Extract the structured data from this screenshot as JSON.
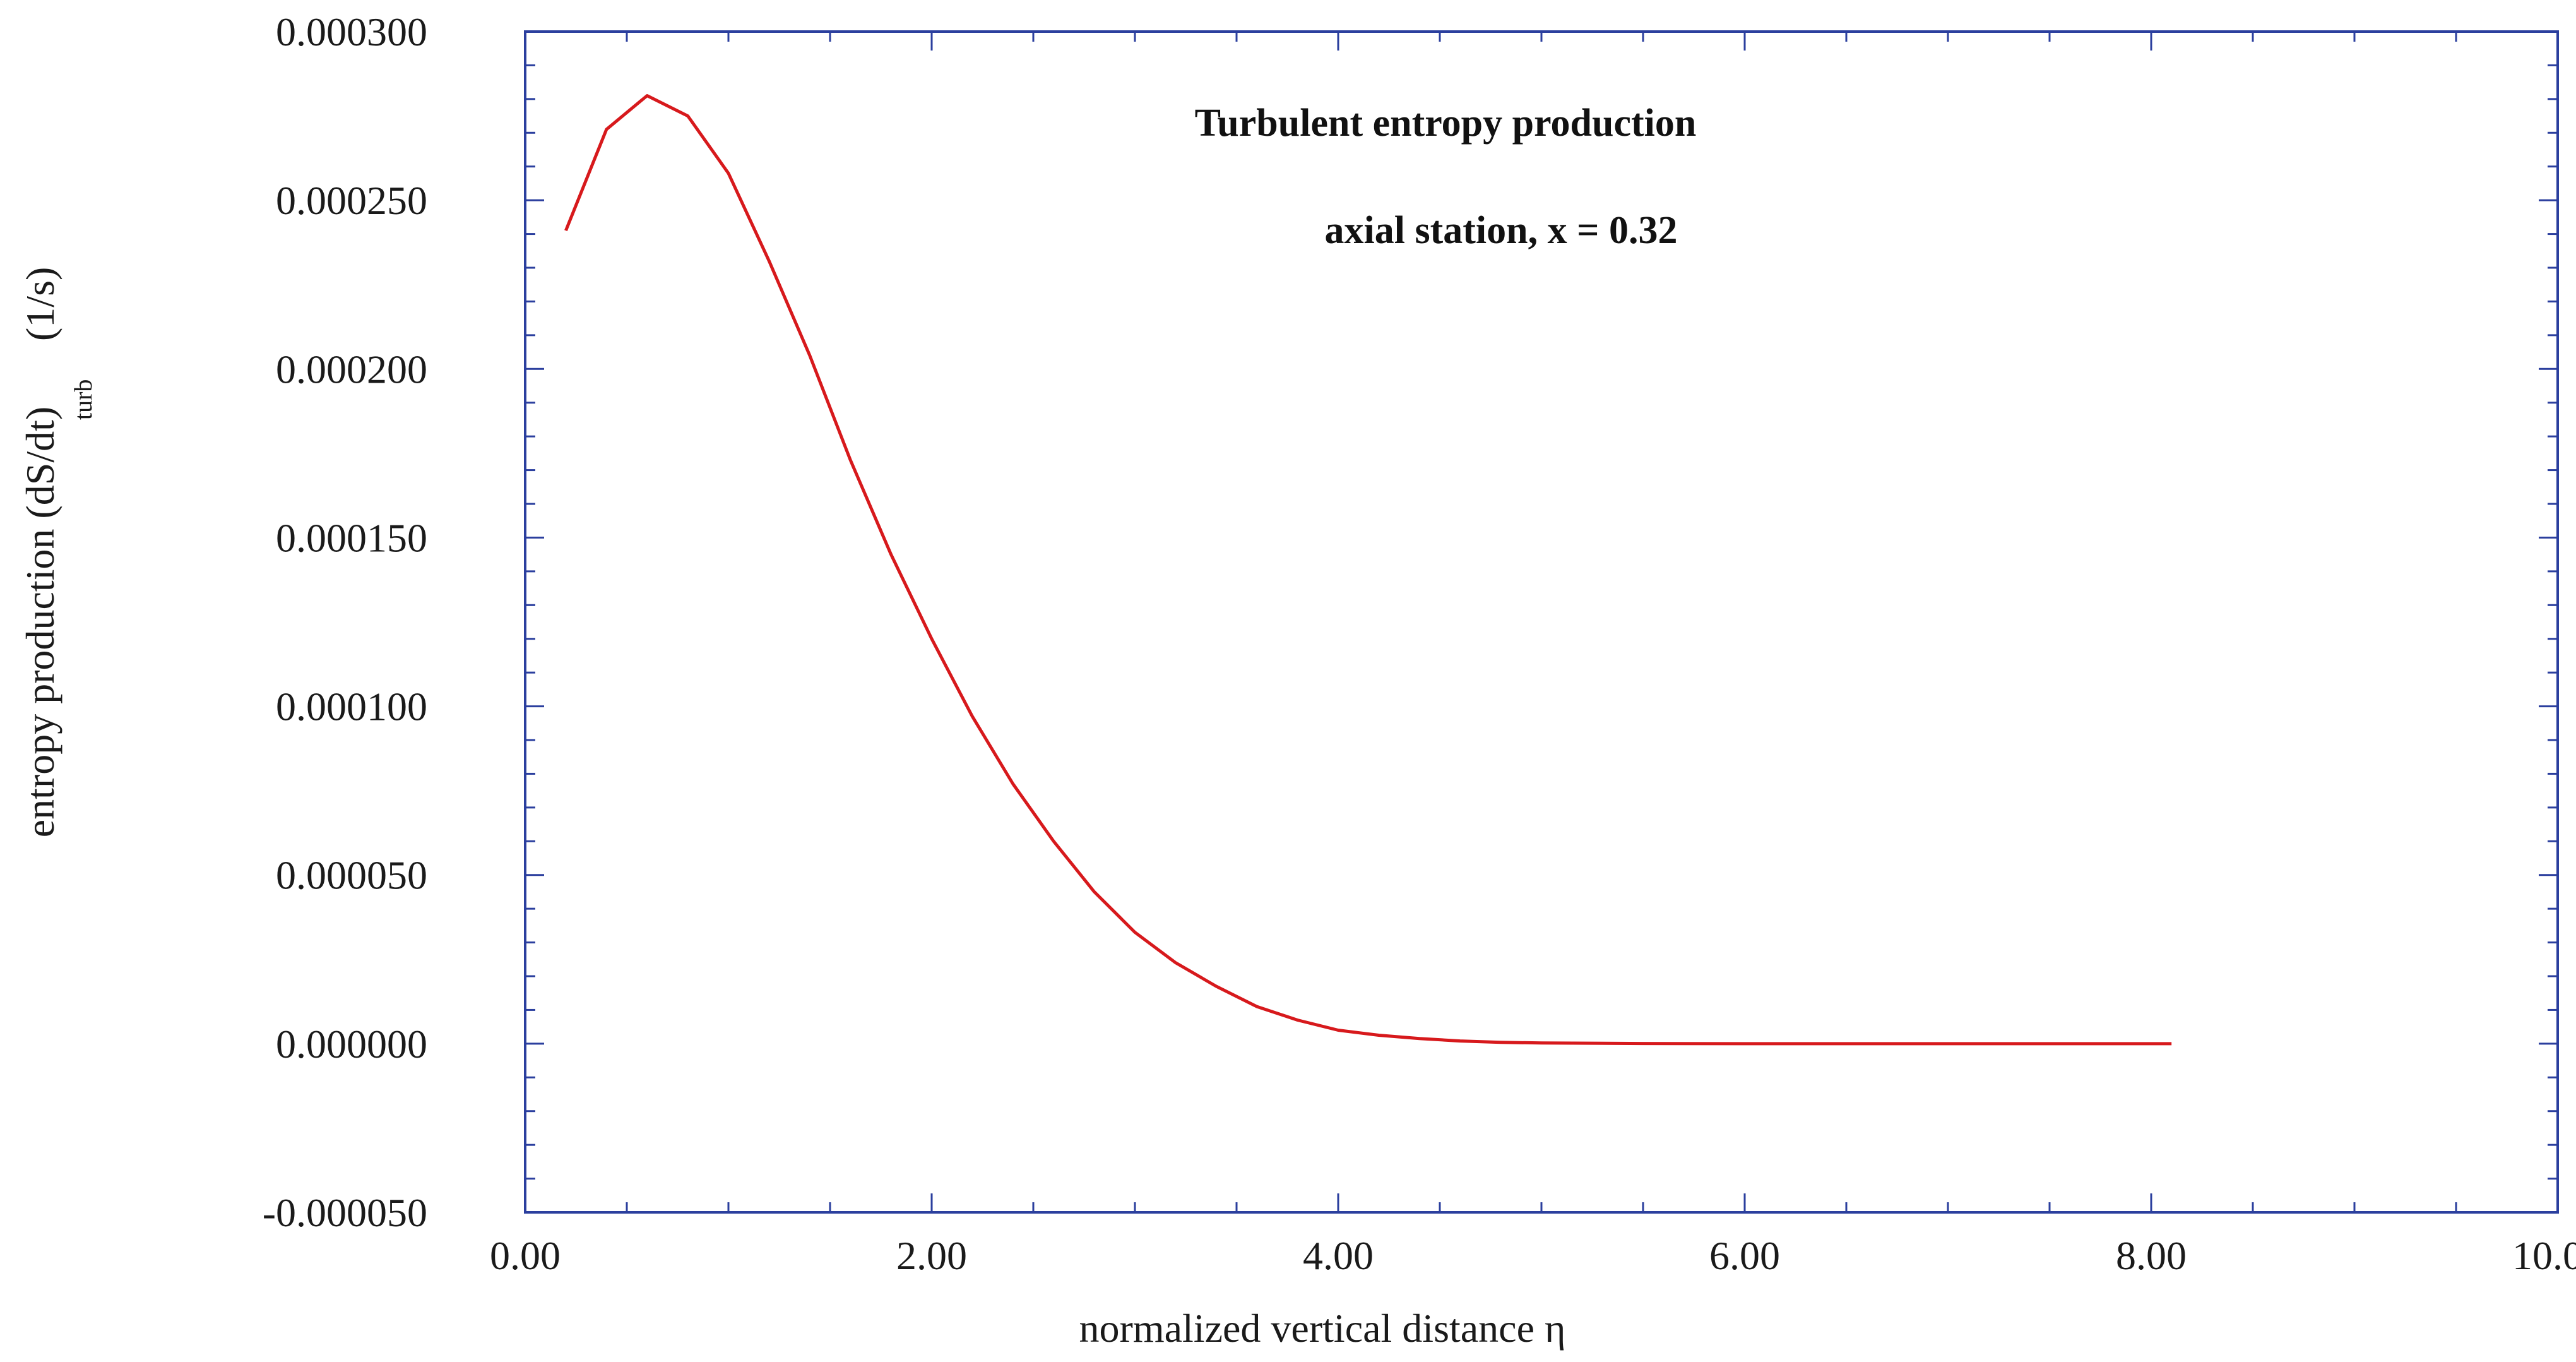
{
  "chart_data": {
    "type": "line",
    "title": "Turbulent entropy production",
    "subtitle": "axial station, x = 0.32",
    "xlabel": "normalized vertical distance η",
    "ylabel_main": "entropy production (dS/dt)",
    "ylabel_sub": "turb",
    "ylabel_unit": "(1/s)",
    "xlim": [
      0,
      10
    ],
    "ylim": [
      -5e-05,
      0.0003
    ],
    "x_tick_labels": [
      "0.00",
      "2.00",
      "4.00",
      "6.00",
      "8.00",
      "10.00"
    ],
    "y_tick_labels": [
      "-0.000050",
      "0.000000",
      "0.000050",
      "0.000100",
      "0.000150",
      "0.000200",
      "0.000250",
      "0.000300"
    ],
    "series": [
      {
        "name": "Turbulent entropy production",
        "color": "#d7191c",
        "x": [
          0.2,
          0.4,
          0.6,
          0.8,
          1.0,
          1.2,
          1.4,
          1.6,
          1.8,
          2.0,
          2.2,
          2.4,
          2.6,
          2.8,
          3.0,
          3.2,
          3.4,
          3.6,
          3.8,
          4.0,
          4.2,
          4.4,
          4.6,
          4.8,
          5.0,
          5.5,
          6.0,
          6.5,
          7.0,
          7.5,
          8.0,
          8.1
        ],
        "y": [
          0.000241,
          0.000271,
          0.000281,
          0.000275,
          0.000258,
          0.000232,
          0.000204,
          0.000173,
          0.000145,
          0.00012,
          9.7e-05,
          7.7e-05,
          6e-05,
          4.5e-05,
          3.3e-05,
          2.4e-05,
          1.7e-05,
          1.1e-05,
          7e-06,
          4e-06,
          2.5e-06,
          1.5e-06,
          8e-07,
          4e-07,
          2e-07,
          5e-08,
          0.0,
          0.0,
          0.0,
          0.0,
          0.0,
          0.0
        ]
      }
    ]
  },
  "colors": {
    "frame": "#2b3f9e",
    "line": "#d7191c"
  }
}
